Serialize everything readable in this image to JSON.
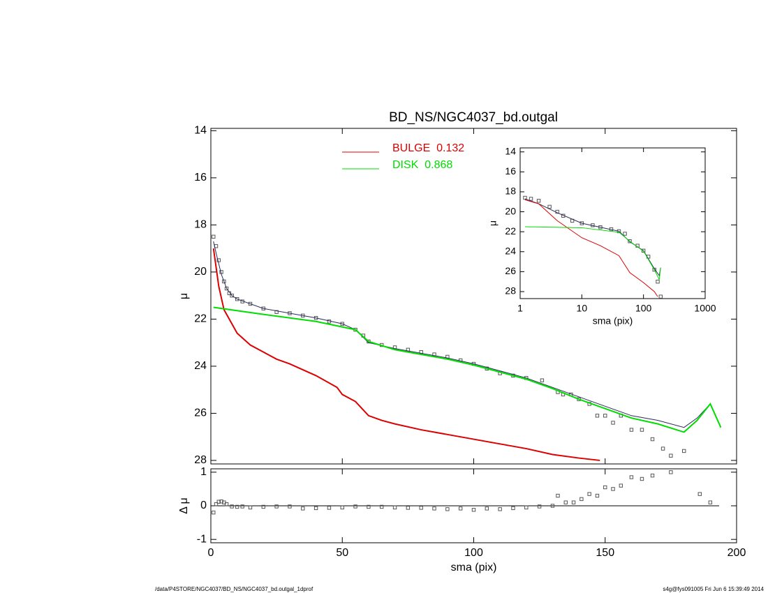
{
  "chart_data": [
    {
      "type": "line",
      "title": "BD_NS/NGC4037_bd.outgal",
      "ylabel": "μ",
      "xlim": [
        0,
        200
      ],
      "ylim": [
        28.15,
        13.9
      ],
      "yticks": [
        14,
        16,
        18,
        20,
        22,
        24,
        26,
        28
      ],
      "legend": "upper center",
      "series": [
        {
          "style": "markers",
          "color": "#555555",
          "x": [
            1,
            2,
            3,
            4,
            5,
            6,
            7,
            8,
            10,
            12,
            15,
            20,
            25,
            30,
            35,
            40,
            45,
            50,
            55,
            58,
            60,
            65,
            70,
            75,
            80,
            85,
            90,
            95,
            100,
            105,
            110,
            115,
            120,
            126,
            132,
            134,
            137,
            140,
            144,
            147,
            150,
            153,
            156,
            160,
            164,
            168,
            172,
            175,
            180
          ],
          "values": [
            18.5,
            18.9,
            19.5,
            20.0,
            20.4,
            20.7,
            20.9,
            21.0,
            21.15,
            21.25,
            21.35,
            21.55,
            21.7,
            21.75,
            21.85,
            21.95,
            22.1,
            22.2,
            22.45,
            22.7,
            22.95,
            23.1,
            23.2,
            23.3,
            23.4,
            23.5,
            23.6,
            23.75,
            23.9,
            24.1,
            24.3,
            24.4,
            24.5,
            24.6,
            25.1,
            25.2,
            25.2,
            25.4,
            25.6,
            26.1,
            26.1,
            26.4,
            26.1,
            26.7,
            26.7,
            27.1,
            27.5,
            27.8,
            27.6
          ]
        },
        {
          "style": "line",
          "color": "#2a2a5a",
          "line_width": 1,
          "x": [
            1,
            2,
            4,
            6,
            8,
            10,
            20,
            30,
            40,
            50,
            55,
            60,
            70,
            80,
            90,
            100,
            110,
            120,
            130,
            140,
            150,
            160,
            170,
            180,
            185,
            190,
            194
          ],
          "values": [
            18.7,
            19.2,
            20.1,
            20.7,
            21.0,
            21.15,
            21.55,
            21.75,
            21.95,
            22.2,
            22.45,
            23.0,
            23.25,
            23.45,
            23.65,
            23.9,
            24.2,
            24.5,
            24.9,
            25.3,
            25.7,
            26.1,
            26.3,
            26.6,
            26.2,
            25.6,
            26.6
          ]
        },
        {
          "name": "BULGE  0.132",
          "style": "line",
          "color": "#dd0000",
          "line_width": 2,
          "x": [
            1,
            3,
            5,
            10,
            15,
            20,
            25,
            30,
            40,
            48,
            50,
            55,
            60,
            65,
            70,
            80,
            90,
            100,
            110,
            120,
            130,
            140,
            148
          ],
          "values": [
            19.0,
            20.6,
            21.6,
            22.6,
            23.1,
            23.4,
            23.7,
            23.9,
            24.4,
            24.9,
            25.2,
            25.5,
            26.1,
            26.3,
            26.45,
            26.7,
            26.9,
            27.1,
            27.3,
            27.5,
            27.75,
            27.9,
            28.0
          ]
        },
        {
          "name": "DISK  0.868",
          "style": "line",
          "color": "#00dd00",
          "line_width": 2,
          "x": [
            1,
            20,
            40,
            55,
            60,
            70,
            80,
            90,
            100,
            110,
            120,
            130,
            140,
            150,
            160,
            170,
            180,
            185,
            190,
            194
          ],
          "values": [
            21.5,
            21.8,
            22.1,
            22.45,
            22.95,
            23.3,
            23.5,
            23.7,
            23.95,
            24.25,
            24.55,
            24.95,
            25.4,
            25.8,
            26.2,
            26.45,
            26.8,
            26.3,
            25.6,
            26.6
          ]
        }
      ]
    },
    {
      "type": "line",
      "ylabel": "Δ μ",
      "xlabel": "sma (pix)",
      "xlim": [
        0,
        200
      ],
      "ylim": [
        -1.1,
        1.1
      ],
      "xticks": [
        0,
        50,
        100,
        150,
        200
      ],
      "yticks": [
        -1,
        0,
        1
      ],
      "hline": 0,
      "series": [
        {
          "style": "markers",
          "color": "#555555",
          "x": [
            1,
            2,
            3,
            4,
            5,
            6,
            8,
            10,
            12,
            15,
            20,
            25,
            30,
            35,
            40,
            45,
            50,
            55,
            60,
            65,
            70,
            75,
            80,
            85,
            90,
            95,
            100,
            105,
            110,
            115,
            120,
            125,
            130,
            132,
            135,
            138,
            141,
            144,
            147,
            150,
            153,
            156,
            160,
            164,
            168,
            175,
            186,
            190
          ],
          "values": [
            -0.2,
            0.05,
            0.12,
            0.13,
            0.1,
            0.05,
            -0.02,
            -0.03,
            -0.02,
            -0.05,
            -0.03,
            -0.02,
            -0.02,
            -0.08,
            -0.07,
            -0.06,
            -0.05,
            -0.02,
            -0.03,
            -0.03,
            -0.05,
            -0.06,
            -0.06,
            -0.08,
            -0.1,
            -0.08,
            -0.12,
            -0.08,
            -0.1,
            -0.07,
            -0.05,
            -0.02,
            0.0,
            0.3,
            0.1,
            0.1,
            0.2,
            0.35,
            0.3,
            0.55,
            0.5,
            0.6,
            0.85,
            0.8,
            0.9,
            1.0,
            0.35,
            0.1
          ]
        }
      ]
    },
    {
      "type": "line",
      "ylabel": "μ",
      "xlabel": "sma (pix)",
      "xscale": "log",
      "xlim": [
        1,
        1000
      ],
      "ylim": [
        28.7,
        13.6
      ],
      "xticks": [
        1,
        10,
        100,
        1000
      ],
      "yticks": [
        14,
        16,
        18,
        20,
        22,
        24,
        26,
        28
      ],
      "series": [
        {
          "style": "markers",
          "color": "#555555",
          "x": [
            1.2,
            1.5,
            2,
            3,
            4,
            5,
            7,
            10,
            15,
            20,
            30,
            40,
            50,
            60,
            80,
            100,
            120,
            150,
            170,
            190
          ],
          "values": [
            18.6,
            18.7,
            18.9,
            19.5,
            20.0,
            20.4,
            20.9,
            21.15,
            21.35,
            21.55,
            21.75,
            21.95,
            22.2,
            22.95,
            23.4,
            23.9,
            24.5,
            25.8,
            27.0,
            28.5
          ]
        },
        {
          "style": "line",
          "color": "#2a2a5a",
          "line_width": 1,
          "x": [
            1.2,
            2,
            4,
            10,
            20,
            40,
            60,
            100,
            150,
            180,
            190
          ],
          "values": [
            18.7,
            19.2,
            20.1,
            21.15,
            21.55,
            21.95,
            23.0,
            23.9,
            25.7,
            26.4,
            25.6
          ]
        },
        {
          "style": "line",
          "color": "#dd0000",
          "line_width": 1,
          "x": [
            1.2,
            2,
            4,
            10,
            20,
            40,
            60,
            100,
            150,
            170
          ],
          "values": [
            18.8,
            19.2,
            20.9,
            22.6,
            23.4,
            24.4,
            26.1,
            27.1,
            28.0,
            28.5
          ]
        },
        {
          "style": "line",
          "color": "#00dd00",
          "line_width": 1,
          "x": [
            1.2,
            10,
            40,
            60,
            100,
            150,
            180,
            190
          ],
          "values": [
            21.5,
            21.6,
            22.05,
            22.95,
            23.95,
            25.8,
            26.8,
            25.6
          ]
        }
      ]
    }
  ],
  "footer": {
    "left": "/data/P4STORE/NGC4037/BD_NS/NGC4037_bd.outgal_1dprof",
    "right": "s4g@fys091005  Fri Jun  6 15:39:49 2014"
  }
}
